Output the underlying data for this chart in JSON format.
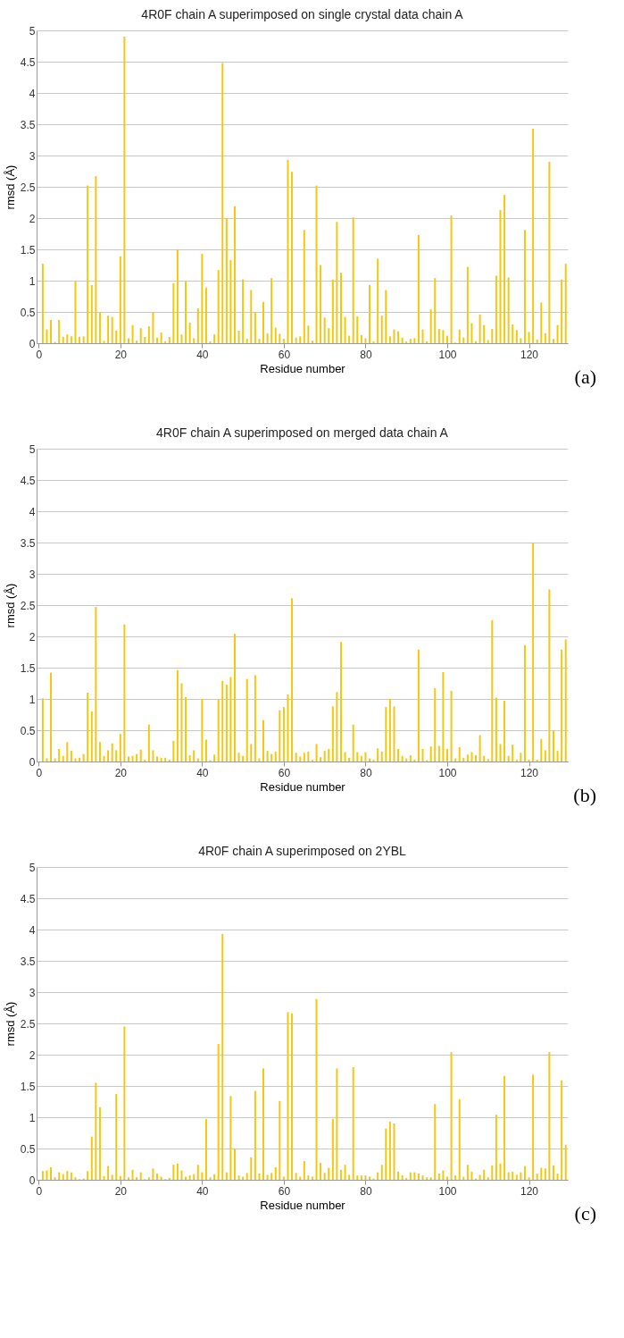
{
  "chart_data": [
    {
      "type": "bar",
      "title": "4R0F chain A superimposed on single crystal data chain A",
      "xlabel": "Residue number",
      "ylabel": "rmsd (Å)",
      "annotations": [
        "(a)"
      ],
      "color": "#f2c811",
      "xlim": [
        -0.5,
        129.5
      ],
      "xticks": [
        0,
        20,
        40,
        60,
        80,
        100,
        120
      ],
      "ylim": [
        0,
        5
      ],
      "yticks": [
        0,
        0.5,
        1,
        1.5,
        2,
        2.5,
        3,
        3.5,
        4,
        4.5,
        5
      ],
      "grid": "y",
      "x": [
        1,
        2,
        3,
        4,
        5,
        6,
        7,
        8,
        9,
        10,
        11,
        12,
        13,
        14,
        15,
        16,
        17,
        18,
        19,
        20,
        21,
        22,
        23,
        24,
        25,
        26,
        27,
        28,
        29,
        30,
        31,
        32,
        33,
        34,
        35,
        36,
        37,
        38,
        39,
        40,
        41,
        42,
        43,
        44,
        45,
        46,
        47,
        48,
        49,
        50,
        51,
        52,
        53,
        54,
        55,
        56,
        57,
        58,
        59,
        60,
        61,
        62,
        63,
        64,
        65,
        66,
        67,
        68,
        69,
        70,
        71,
        72,
        73,
        74,
        75,
        76,
        77,
        78,
        79,
        80,
        81,
        82,
        83,
        84,
        85,
        86,
        87,
        88,
        89,
        90,
        91,
        92,
        93,
        94,
        95,
        96,
        97,
        98,
        99,
        100,
        101,
        102,
        103,
        104,
        105,
        106,
        107,
        108,
        109,
        110,
        111,
        112,
        113,
        114,
        115,
        116,
        117,
        118,
        119,
        120,
        121,
        122,
        123,
        124,
        125,
        126,
        127,
        128,
        129
      ],
      "values": [
        1.27,
        0.22,
        0.37,
        0.02,
        0.37,
        0.1,
        0.14,
        0.11,
        0.99,
        0.1,
        0.11,
        2.52,
        0.93,
        2.67,
        0.49,
        0.04,
        0.44,
        0.42,
        0.2,
        1.39,
        4.9,
        0.08,
        0.29,
        0.04,
        0.24,
        0.1,
        0.27,
        0.5,
        0.09,
        0.17,
        0.03,
        0.1,
        0.96,
        1.5,
        0.14,
        0.99,
        0.33,
        0.08,
        0.56,
        1.43,
        0.89,
        0.03,
        0.14,
        1.17,
        4.48,
        2.0,
        1.33,
        2.19,
        0.2,
        1.02,
        0.07,
        0.85,
        0.49,
        0.07,
        0.66,
        0.16,
        1.04,
        0.25,
        0.15,
        0.07,
        2.93,
        2.74,
        0.09,
        0.11,
        1.81,
        0.28,
        0.04,
        2.52,
        1.25,
        0.41,
        0.24,
        1.02,
        1.94,
        1.13,
        0.42,
        0.12,
        2.01,
        0.43,
        0.13,
        0.08,
        0.93,
        0.03,
        1.35,
        0.44,
        0.85,
        0.11,
        0.22,
        0.19,
        0.09,
        0.03,
        0.07,
        0.08,
        1.73,
        0.22,
        0.03,
        0.54,
        1.04,
        0.23,
        0.21,
        0.12,
        2.04,
        0.01,
        0.22,
        0.09,
        1.22,
        0.32,
        0.03,
        0.46,
        0.29,
        0.05,
        0.23,
        1.08,
        2.13,
        2.37,
        1.05,
        0.3,
        0.21,
        0.08,
        1.81,
        0.18,
        3.43,
        0.06,
        0.65,
        0.16,
        2.9,
        0.07,
        0.29,
        1.02,
        1.27
      ]
    },
    {
      "type": "bar",
      "title": "4R0F chain A superimposed on merged data chain A",
      "xlabel": "Residue number",
      "ylabel": "rmsd (Å)",
      "annotations": [
        "(b)"
      ],
      "color": "#f2c811",
      "xlim": [
        -0.5,
        129.5
      ],
      "xticks": [
        0,
        20,
        40,
        60,
        80,
        100,
        120
      ],
      "ylim": [
        0,
        5
      ],
      "yticks": [
        0,
        0.5,
        1,
        1.5,
        2,
        2.5,
        3,
        3.5,
        4,
        4.5,
        5
      ],
      "grid": "y",
      "x": [
        1,
        2,
        3,
        4,
        5,
        6,
        7,
        8,
        9,
        10,
        11,
        12,
        13,
        14,
        15,
        16,
        17,
        18,
        19,
        20,
        21,
        22,
        23,
        24,
        25,
        26,
        27,
        28,
        29,
        30,
        31,
        32,
        33,
        34,
        35,
        36,
        37,
        38,
        39,
        40,
        41,
        42,
        43,
        44,
        45,
        46,
        47,
        48,
        49,
        50,
        51,
        52,
        53,
        54,
        55,
        56,
        57,
        58,
        59,
        60,
        61,
        62,
        63,
        64,
        65,
        66,
        67,
        68,
        69,
        70,
        71,
        72,
        73,
        74,
        75,
        76,
        77,
        78,
        79,
        80,
        81,
        82,
        83,
        84,
        85,
        86,
        87,
        88,
        89,
        90,
        91,
        92,
        93,
        94,
        95,
        96,
        97,
        98,
        99,
        100,
        101,
        102,
        103,
        104,
        105,
        106,
        107,
        108,
        109,
        110,
        111,
        112,
        113,
        114,
        115,
        116,
        117,
        118,
        119,
        120,
        121,
        122,
        123,
        124,
        125,
        126,
        127,
        128,
        129
      ],
      "values": [
        1.01,
        0.05,
        1.42,
        0.05,
        0.2,
        0.09,
        0.31,
        0.17,
        0.05,
        0.06,
        0.12,
        1.1,
        0.8,
        2.47,
        0.31,
        0.09,
        0.18,
        0.29,
        0.18,
        0.44,
        2.19,
        0.08,
        0.09,
        0.12,
        0.19,
        0.03,
        0.59,
        0.18,
        0.08,
        0.06,
        0.06,
        0.03,
        0.33,
        1.46,
        1.25,
        1.03,
        0.1,
        0.18,
        0.05,
        1.0,
        0.35,
        0.02,
        0.11,
        0.99,
        1.29,
        1.23,
        1.35,
        2.04,
        0.14,
        0.09,
        1.32,
        0.28,
        1.38,
        0.05,
        0.66,
        0.17,
        0.12,
        0.16,
        0.82,
        0.87,
        1.07,
        2.61,
        0.14,
        0.08,
        0.14,
        0.16,
        0.03,
        0.28,
        0.07,
        0.17,
        0.2,
        0.88,
        1.11,
        1.91,
        0.15,
        0.06,
        0.59,
        0.15,
        0.09,
        0.15,
        0.05,
        0.03,
        0.21,
        0.16,
        0.87,
        1.0,
        0.88,
        0.2,
        0.09,
        0.05,
        0.1,
        0.03,
        1.79,
        0.2,
        0.02,
        0.24,
        1.17,
        0.25,
        1.43,
        0.2,
        1.13,
        0.05,
        0.23,
        0.06,
        0.11,
        0.15,
        0.1,
        0.42,
        0.09,
        0.04,
        2.26,
        1.02,
        0.28,
        0.97,
        0.09,
        0.27,
        0.03,
        0.14,
        1.86,
        0.03,
        3.5,
        0.03,
        0.36,
        0.18,
        2.75,
        0.49,
        0.17,
        1.79,
        1.95
      ]
    },
    {
      "type": "bar",
      "title": "4R0F chain A superimposed on 2YBL",
      "xlabel": "Residue number",
      "ylabel": "rmsd (Å)",
      "annotations": [
        "(c)"
      ],
      "color": "#f2c811",
      "xlim": [
        -0.5,
        129.5
      ],
      "xticks": [
        0,
        20,
        40,
        60,
        80,
        100,
        120
      ],
      "ylim": [
        0,
        5
      ],
      "yticks": [
        0,
        0.5,
        1,
        1.5,
        2,
        2.5,
        3,
        3.5,
        4,
        4.5,
        5
      ],
      "grid": "y",
      "x": [
        1,
        2,
        3,
        4,
        5,
        6,
        7,
        8,
        9,
        10,
        11,
        12,
        13,
        14,
        15,
        16,
        17,
        18,
        19,
        20,
        21,
        22,
        23,
        24,
        25,
        26,
        27,
        28,
        29,
        30,
        31,
        32,
        33,
        34,
        35,
        36,
        37,
        38,
        39,
        40,
        41,
        42,
        43,
        44,
        45,
        46,
        47,
        48,
        49,
        50,
        51,
        52,
        53,
        54,
        55,
        56,
        57,
        58,
        59,
        60,
        61,
        62,
        63,
        64,
        65,
        66,
        67,
        68,
        69,
        70,
        71,
        72,
        73,
        74,
        75,
        76,
        77,
        78,
        79,
        80,
        81,
        82,
        83,
        84,
        85,
        86,
        87,
        88,
        89,
        90,
        91,
        92,
        93,
        94,
        95,
        96,
        97,
        98,
        99,
        100,
        101,
        102,
        103,
        104,
        105,
        106,
        107,
        108,
        109,
        110,
        111,
        112,
        113,
        114,
        115,
        116,
        117,
        118,
        119,
        120,
        121,
        122,
        123,
        124,
        125,
        126,
        127,
        128,
        129
      ],
      "values": [
        0.14,
        0.15,
        0.2,
        0.04,
        0.12,
        0.09,
        0.14,
        0.12,
        0.04,
        0.01,
        0.02,
        0.14,
        0.69,
        1.55,
        1.16,
        0.06,
        0.22,
        0.08,
        1.37,
        0.06,
        2.45,
        0.04,
        0.16,
        0.04,
        0.12,
        0.01,
        0.04,
        0.18,
        0.1,
        0.05,
        0.01,
        0.03,
        0.24,
        0.26,
        0.15,
        0.05,
        0.07,
        0.09,
        0.24,
        0.12,
        0.97,
        0.04,
        0.09,
        2.17,
        3.93,
        0.12,
        1.34,
        0.5,
        0.07,
        0.05,
        0.11,
        0.36,
        1.42,
        0.1,
        1.78,
        0.08,
        0.11,
        0.2,
        1.26,
        0.05,
        2.68,
        2.66,
        0.11,
        0.05,
        0.3,
        0.07,
        0.05,
        2.89,
        0.27,
        0.11,
        0.19,
        0.97,
        1.78,
        0.16,
        0.24,
        0.08,
        1.8,
        0.07,
        0.07,
        0.07,
        0.05,
        0.02,
        0.12,
        0.24,
        0.82,
        0.93,
        0.9,
        0.13,
        0.07,
        0.03,
        0.12,
        0.12,
        0.1,
        0.07,
        0.04,
        0.04,
        1.21,
        0.1,
        0.15,
        0.05,
        2.04,
        0.07,
        1.29,
        0.05,
        0.24,
        0.13,
        0.02,
        0.08,
        0.16,
        0.04,
        0.23,
        1.04,
        0.26,
        1.66,
        0.12,
        0.13,
        0.08,
        0.12,
        0.22,
        0.04,
        1.68,
        0.1,
        0.19,
        0.18,
        2.04,
        0.23,
        0.1,
        1.59,
        0.56
      ]
    }
  ]
}
